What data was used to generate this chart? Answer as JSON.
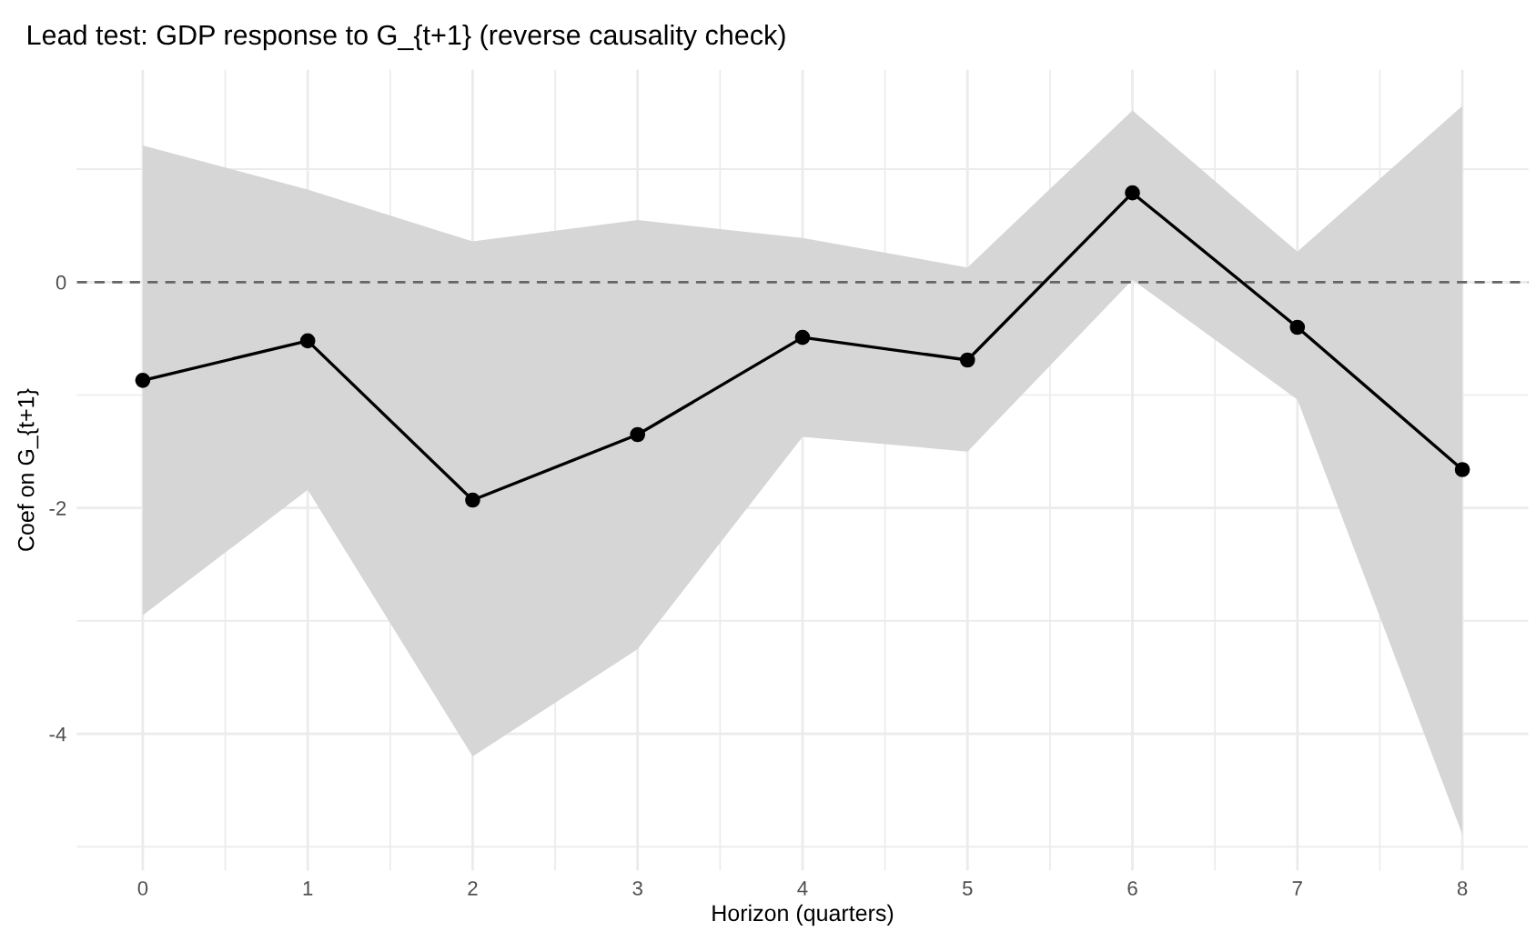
{
  "chart_data": {
    "type": "line",
    "title": "Lead test: GDP response to G_{t+1} (reverse causality check)",
    "xlabel": "Horizon (quarters)",
    "ylabel": "Coef on G_{t+1}",
    "x": [
      0,
      1,
      2,
      3,
      4,
      5,
      6,
      7,
      8
    ],
    "series": [
      {
        "color": "#000000",
        "values": [
          -0.87,
          -0.52,
          -1.93,
          -1.35,
          -0.49,
          -0.69,
          0.79,
          -0.4,
          -1.66
        ],
        "lower": [
          -2.95,
          -1.84,
          -4.2,
          -3.25,
          -1.37,
          -1.5,
          0.02,
          -1.04,
          -4.89
        ],
        "upper": [
          1.21,
          0.82,
          0.36,
          0.55,
          0.39,
          0.13,
          1.52,
          0.27,
          1.56
        ]
      }
    ],
    "xlim": [
      -0.4,
      8.4
    ],
    "ylim": [
      -5.21,
      1.88
    ],
    "xticks": [
      0,
      1,
      2,
      3,
      4,
      5,
      6,
      7,
      8
    ],
    "yticks": [
      -4,
      -2,
      0
    ],
    "ref_lines": [
      {
        "axis": "y",
        "value": 0,
        "color": "#666666",
        "line_style": "dashed"
      }
    ],
    "grid": true,
    "marker": "circle",
    "line_style": "solid",
    "legend": false
  }
}
